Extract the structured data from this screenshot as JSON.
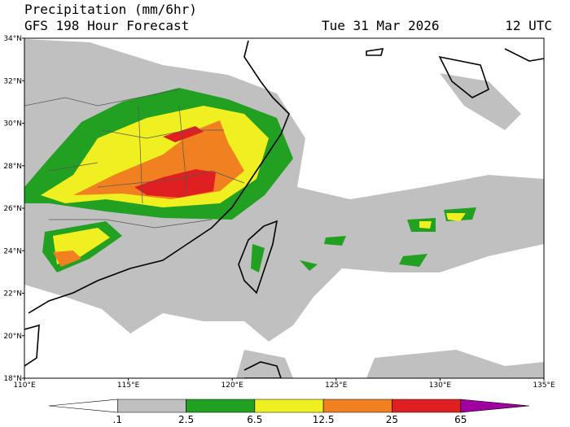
{
  "header": {
    "title": "Precipitation (mm/6hr)",
    "subtitle": "GFS 198 Hour Forecast",
    "date": "Tue 31 Mar 2026",
    "time": "12 UTC"
  },
  "map": {
    "lat_labels": [
      "34°N",
      "32°N",
      "30°N",
      "28°N",
      "26°N",
      "24°N",
      "22°N",
      "20°N",
      "18°N"
    ],
    "lon_labels": [
      "110°E",
      "115°E",
      "120°E",
      "125°E",
      "130°E",
      "135°E"
    ]
  },
  "colorbar": {
    "labels": [
      ".1",
      "2.5",
      "6.5",
      "12.5",
      "25",
      "65"
    ],
    "colors": [
      "#ffffff",
      "#c0c0c0",
      "#22a022",
      "#f0f020",
      "#f08020",
      "#e02020",
      "#a000a0"
    ]
  }
}
